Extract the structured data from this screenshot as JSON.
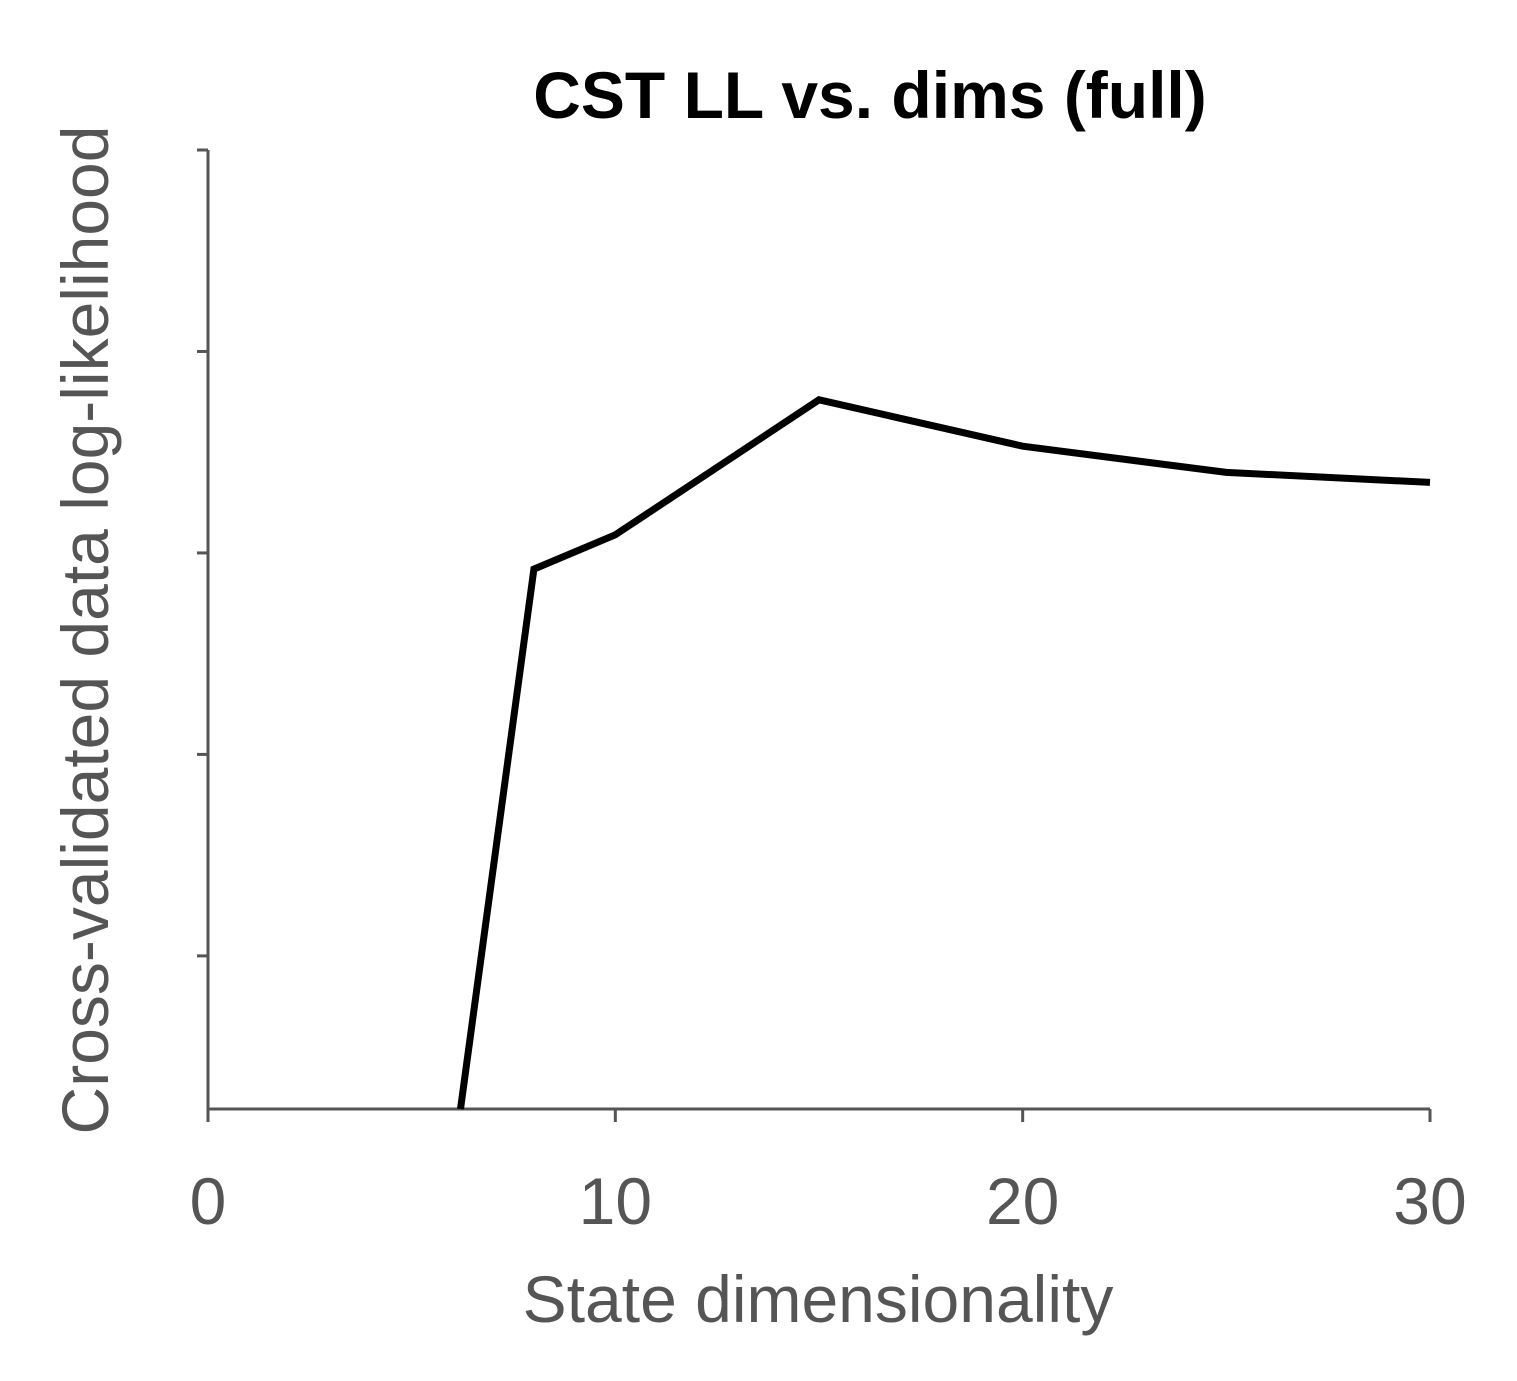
{
  "chart_data": {
    "type": "line",
    "title": "CST LL vs. dims (full)",
    "xlabel": "State dimensionality",
    "ylabel": "Cross-validated data log-likelihood",
    "xlim": [
      0,
      30
    ],
    "ylim": [
      0,
      4.76
    ],
    "x_ticks": [
      0,
      10,
      20,
      30
    ],
    "x_tick_labels": [
      "0",
      "10",
      "20",
      "30"
    ],
    "y_ticks": [
      0.76,
      1.76,
      2.76,
      3.76,
      4.76
    ],
    "y_tick_labels": [
      "",
      "",
      "",
      "",
      ""
    ],
    "grid": false,
    "legend": "none",
    "series": [
      {
        "x": [
          6.2,
          8,
          10,
          15,
          20,
          25,
          30
        ],
        "y": [
          0,
          2.68,
          2.85,
          3.52,
          3.29,
          3.16,
          3.11
        ],
        "color": "#000000"
      }
    ],
    "colors": {
      "axis": "#555555",
      "line": "#000000",
      "title": "#000000",
      "label": "#555555"
    }
  }
}
